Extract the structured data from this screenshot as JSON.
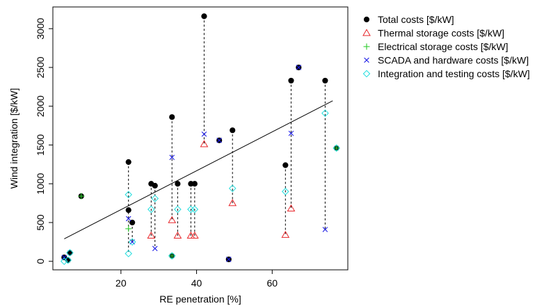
{
  "chart_data": {
    "type": "scatter",
    "xlabel": "RE penetration [%]",
    "ylabel": "Wind integration [$/kW]",
    "xlim": [
      2,
      80
    ],
    "ylim": [
      -110,
      3280
    ],
    "x_ticks": [
      20,
      40,
      60
    ],
    "y_ticks": [
      0,
      500,
      1000,
      1500,
      2000,
      2500,
      3000
    ],
    "legend_position": "right, outside plot",
    "colors": {
      "total": "#000000",
      "thermal": "#e8262a",
      "electrical": "#2ecc2e",
      "scada": "#1a1ae6",
      "integration": "#22dede"
    },
    "series": [
      {
        "key": "total",
        "name": "Total costs [$/kW]",
        "marker": "filled-circle",
        "points": [
          {
            "x": 5,
            "y": 50
          },
          {
            "x": 6,
            "y": 15
          },
          {
            "x": 6.5,
            "y": 110
          },
          {
            "x": 9.5,
            "y": 840
          },
          {
            "x": 22,
            "y": 1280
          },
          {
            "x": 22,
            "y": 660
          },
          {
            "x": 23,
            "y": 500
          },
          {
            "x": 28,
            "y": 1000
          },
          {
            "x": 29,
            "y": 975
          },
          {
            "x": 33.5,
            "y": 70
          },
          {
            "x": 33.5,
            "y": 1860
          },
          {
            "x": 35,
            "y": 1000
          },
          {
            "x": 38.5,
            "y": 1000
          },
          {
            "x": 39.5,
            "y": 1000
          },
          {
            "x": 42,
            "y": 3160
          },
          {
            "x": 46,
            "y": 1560
          },
          {
            "x": 48.5,
            "y": 25
          },
          {
            "x": 49.5,
            "y": 1690
          },
          {
            "x": 63.5,
            "y": 1240
          },
          {
            "x": 65,
            "y": 2330
          },
          {
            "x": 67,
            "y": 2500
          },
          {
            "x": 74,
            "y": 2330
          },
          {
            "x": 77,
            "y": 1460
          }
        ]
      },
      {
        "key": "thermal",
        "name": "Thermal storage costs [$/kW]",
        "marker": "open-triangle",
        "points": [
          {
            "x": 28,
            "y": 330
          },
          {
            "x": 33.5,
            "y": 530
          },
          {
            "x": 35,
            "y": 330
          },
          {
            "x": 38.5,
            "y": 330
          },
          {
            "x": 39.5,
            "y": 330
          },
          {
            "x": 42,
            "y": 1510
          },
          {
            "x": 49.5,
            "y": 750
          },
          {
            "x": 63.5,
            "y": 340
          },
          {
            "x": 65,
            "y": 680
          }
        ]
      },
      {
        "key": "electrical",
        "name": "Electrical storage costs [$/kW]",
        "marker": "plus",
        "points": [
          {
            "x": 9.5,
            "y": 840
          },
          {
            "x": 22,
            "y": 420
          },
          {
            "x": 33.5,
            "y": 70
          },
          {
            "x": 77,
            "y": 1460
          }
        ]
      },
      {
        "key": "scada",
        "name": "SCADA and hardware costs [$/kW]",
        "marker": "x",
        "points": [
          {
            "x": 5,
            "y": 50
          },
          {
            "x": 22,
            "y": 550
          },
          {
            "x": 23,
            "y": 250
          },
          {
            "x": 29,
            "y": 165
          },
          {
            "x": 33.5,
            "y": 1340
          },
          {
            "x": 42,
            "y": 1640
          },
          {
            "x": 46,
            "y": 1560
          },
          {
            "x": 48.5,
            "y": 25
          },
          {
            "x": 65,
            "y": 1650
          },
          {
            "x": 67,
            "y": 2500
          },
          {
            "x": 74,
            "y": 410
          }
        ]
      },
      {
        "key": "integration",
        "name": "Integration and testing costs [$/kW]",
        "marker": "open-diamond",
        "points": [
          {
            "x": 5,
            "y": 0
          },
          {
            "x": 6,
            "y": 15
          },
          {
            "x": 6.5,
            "y": 110
          },
          {
            "x": 22,
            "y": 860
          },
          {
            "x": 22,
            "y": 100
          },
          {
            "x": 23,
            "y": 250
          },
          {
            "x": 28,
            "y": 670
          },
          {
            "x": 29,
            "y": 810
          },
          {
            "x": 33.5,
            "y": 70
          },
          {
            "x": 35,
            "y": 670
          },
          {
            "x": 38.5,
            "y": 670
          },
          {
            "x": 39.5,
            "y": 670
          },
          {
            "x": 49.5,
            "y": 940
          },
          {
            "x": 63.5,
            "y": 900
          },
          {
            "x": 74,
            "y": 1910
          },
          {
            "x": 77,
            "y": 1460
          }
        ]
      }
    ],
    "dashed_links": [
      {
        "x": 22,
        "y_from": 1280,
        "y_to": 100
      },
      {
        "x": 23,
        "y_from": 500,
        "y_to": 250
      },
      {
        "x": 28,
        "y_from": 1000,
        "y_to": 330
      },
      {
        "x": 29,
        "y_from": 975,
        "y_to": 165
      },
      {
        "x": 33.5,
        "y_from": 1860,
        "y_to": 530
      },
      {
        "x": 35,
        "y_from": 1000,
        "y_to": 330
      },
      {
        "x": 38.5,
        "y_from": 1000,
        "y_to": 330
      },
      {
        "x": 39.5,
        "y_from": 1000,
        "y_to": 330
      },
      {
        "x": 42,
        "y_from": 3160,
        "y_to": 1510
      },
      {
        "x": 49.5,
        "y_from": 1690,
        "y_to": 750
      },
      {
        "x": 63.5,
        "y_from": 1240,
        "y_to": 340
      },
      {
        "x": 65,
        "y_from": 2330,
        "y_to": 680
      },
      {
        "x": 74,
        "y_from": 2330,
        "y_to": 410
      }
    ],
    "trend_line": {
      "x1": 5,
      "y1": 290,
      "x2": 76,
      "y2": 2070
    }
  }
}
